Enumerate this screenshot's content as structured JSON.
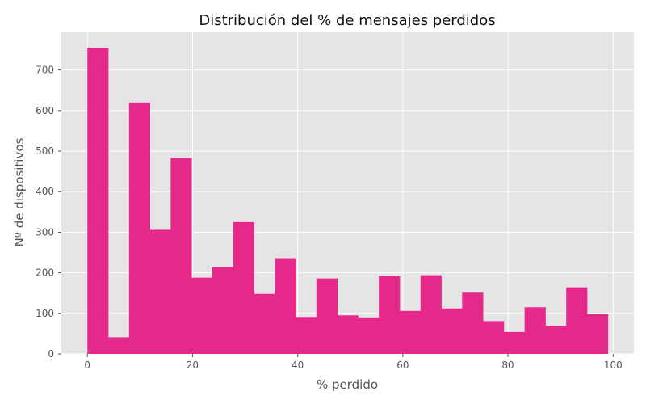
{
  "chart_data": {
    "type": "bar",
    "title": "Distribución del % de mensajes perdidos",
    "xlabel": "% perdido",
    "ylabel": "Nº de dispositivos",
    "xlim": [
      -4.95,
      103.95
    ],
    "ylim": [
      0,
      793
    ],
    "x_ticks": [
      0,
      20,
      40,
      60,
      80,
      100
    ],
    "y_ticks": [
      0,
      100,
      200,
      300,
      400,
      500,
      600,
      700
    ],
    "bin_edges": [
      0,
      3.96,
      7.92,
      11.88,
      15.84,
      19.8,
      23.76,
      27.72,
      31.68,
      35.64,
      39.6,
      43.56,
      47.52,
      51.48,
      55.44,
      59.4,
      63.36,
      67.32,
      71.28,
      75.24,
      79.2,
      83.16,
      87.12,
      91.08,
      95.04,
      99
    ],
    "values": [
      755,
      41,
      620,
      306,
      483,
      188,
      214,
      325,
      148,
      236,
      91,
      186,
      95,
      90,
      192,
      106,
      194,
      112,
      151,
      81,
      54,
      115,
      69,
      164,
      98
    ],
    "colors": {
      "bar": "#E5298A",
      "plot_background": "#E5E5E5",
      "grid": "#FFFFFF",
      "text": "#555555",
      "title": "#111111"
    },
    "grid": true
  }
}
